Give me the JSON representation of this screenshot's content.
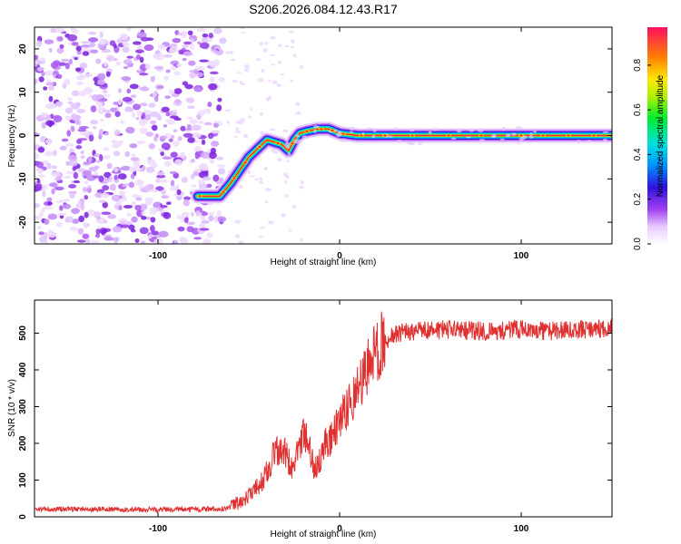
{
  "title": "S206.2026.084.12.43.R17",
  "chart_data": [
    {
      "type": "heatmap",
      "name": "spectrogram",
      "xlabel": "Height of straight line (km)",
      "ylabel": "Frequency (Hz)",
      "xlim": [
        -168,
        150
      ],
      "ylim": [
        -25,
        25
      ],
      "xticks": [
        -100,
        0,
        100
      ],
      "xtick_labels": [
        "-100",
        "0",
        "100"
      ],
      "yticks": [
        -20,
        -10,
        0,
        10,
        20
      ],
      "ytick_labels": [
        "-20",
        "-10",
        "0",
        "10",
        "20"
      ],
      "colorbar": {
        "label": "Normalized spectral amplitude",
        "range": [
          0,
          0.97
        ],
        "ticks": [
          0.0,
          0.2,
          0.4,
          0.6,
          0.8
        ],
        "tick_labels": [
          "0.0",
          "0.2",
          "0.4",
          "0.6",
          "0.8"
        ],
        "colormap": "rainbow"
      },
      "noise_region_x": [
        -168,
        -62
      ],
      "ridge": {
        "x": [
          -78,
          -66,
          -60,
          -55,
          -50,
          -45,
          -40,
          -36,
          -32,
          -28,
          -25,
          -22,
          -18,
          -12,
          -6,
          0,
          10,
          25,
          50,
          80,
          110,
          150
        ],
        "y": [
          -14,
          -14,
          -11,
          -8,
          -5,
          -3,
          -1,
          -1.5,
          -2,
          -3.5,
          -1,
          0.5,
          1,
          1.5,
          1.5,
          0.5,
          0,
          0,
          0,
          0,
          0,
          0
        ]
      }
    },
    {
      "type": "line",
      "name": "snr",
      "xlabel": "Height of straight line (km)",
      "ylabel": "SNR (10 * v/v)",
      "xlim": [
        -168,
        150
      ],
      "ylim": [
        0,
        590
      ],
      "xticks": [
        -100,
        0,
        100
      ],
      "xtick_labels": [
        "-100",
        "0",
        "100"
      ],
      "yticks": [
        0,
        100,
        200,
        300,
        400,
        500
      ],
      "ytick_labels": [
        "0",
        "100",
        "200",
        "300",
        "400",
        "500"
      ],
      "color": "#e03030",
      "series": [
        {
          "name": "SNR",
          "x": [
            -168,
            -120,
            -80,
            -62,
            -57,
            -52,
            -47,
            -42,
            -37,
            -33,
            -29,
            -26,
            -22,
            -18,
            -14,
            -11,
            -8,
            -4,
            0,
            4,
            8,
            12,
            16,
            20,
            25,
            30,
            40,
            60,
            80,
            100,
            120,
            150
          ],
          "y": [
            22,
            20,
            20,
            22,
            35,
            50,
            75,
            100,
            160,
            190,
            170,
            120,
            200,
            230,
            130,
            150,
            200,
            220,
            270,
            300,
            340,
            380,
            420,
            450,
            480,
            495,
            505,
            510,
            505,
            510,
            505,
            515
          ]
        }
      ]
    }
  ]
}
